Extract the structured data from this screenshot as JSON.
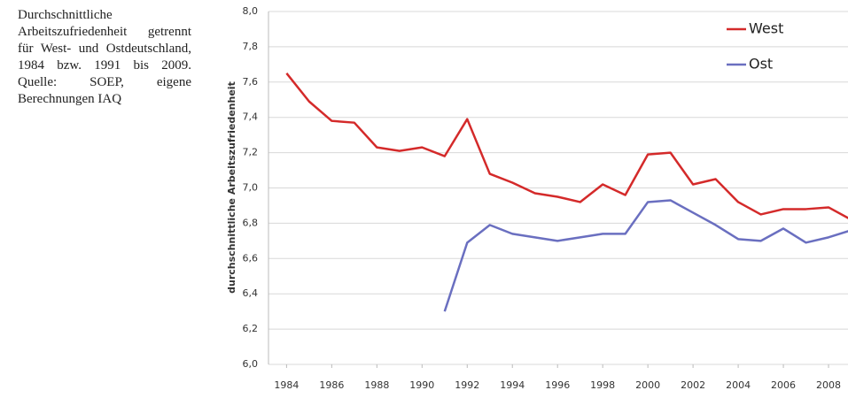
{
  "caption": "Durchschnittliche Arbeitszufriedenheit getrennt für West- und Ostdeutschland, 1984 bzw. 1991 bis 2009. Quelle: SOEP, eigene Berechnungen IAQ",
  "chart_data": {
    "type": "line",
    "y_label": "durchschnittliche Arbeitszufriedenheit",
    "x": [
      1984,
      1985,
      1986,
      1987,
      1988,
      1989,
      1990,
      1991,
      1992,
      1993,
      1994,
      1995,
      1996,
      1997,
      1998,
      1999,
      2000,
      2001,
      2002,
      2003,
      2004,
      2005,
      2006,
      2007,
      2008,
      2009
    ],
    "series": [
      {
        "name": "West",
        "color": "#d42a2a",
        "values": [
          7.65,
          7.49,
          7.38,
          7.37,
          7.23,
          7.21,
          7.23,
          7.18,
          7.39,
          7.08,
          7.03,
          6.97,
          6.95,
          6.92,
          7.02,
          6.96,
          7.19,
          7.2,
          7.02,
          7.05,
          6.92,
          6.85,
          6.88,
          6.88,
          6.89,
          6.82
        ]
      },
      {
        "name": "Ost",
        "color": "#6a6fc0",
        "values": [
          null,
          null,
          null,
          null,
          null,
          null,
          null,
          6.3,
          6.69,
          6.79,
          6.74,
          6.72,
          6.7,
          6.72,
          6.74,
          6.74,
          6.92,
          6.93,
          6.86,
          6.79,
          6.71,
          6.7,
          6.77,
          6.69,
          6.72,
          6.76
        ]
      }
    ],
    "xlim": [
      1983.2,
      2010
    ],
    "xticks": [
      1984,
      1986,
      1988,
      1990,
      1992,
      1994,
      1996,
      1998,
      2000,
      2002,
      2004,
      2006,
      2008
    ],
    "ylim": [
      6.0,
      8.0
    ],
    "yticks": [
      {
        "value": 6.0,
        "label": "6,0"
      },
      {
        "value": 6.2,
        "label": "6,2"
      },
      {
        "value": 6.4,
        "label": "6,4"
      },
      {
        "value": 6.6,
        "label": "6,6"
      },
      {
        "value": 6.8,
        "label": "6,8"
      },
      {
        "value": 7.0,
        "label": "7,0"
      },
      {
        "value": 7.2,
        "label": "7,2"
      },
      {
        "value": 7.4,
        "label": "7,4"
      },
      {
        "value": 7.6,
        "label": "7,6"
      },
      {
        "value": 7.8,
        "label": "7,8"
      },
      {
        "value": 8.0,
        "label": "8,0"
      }
    ],
    "grid": true,
    "legend": "upper right"
  }
}
